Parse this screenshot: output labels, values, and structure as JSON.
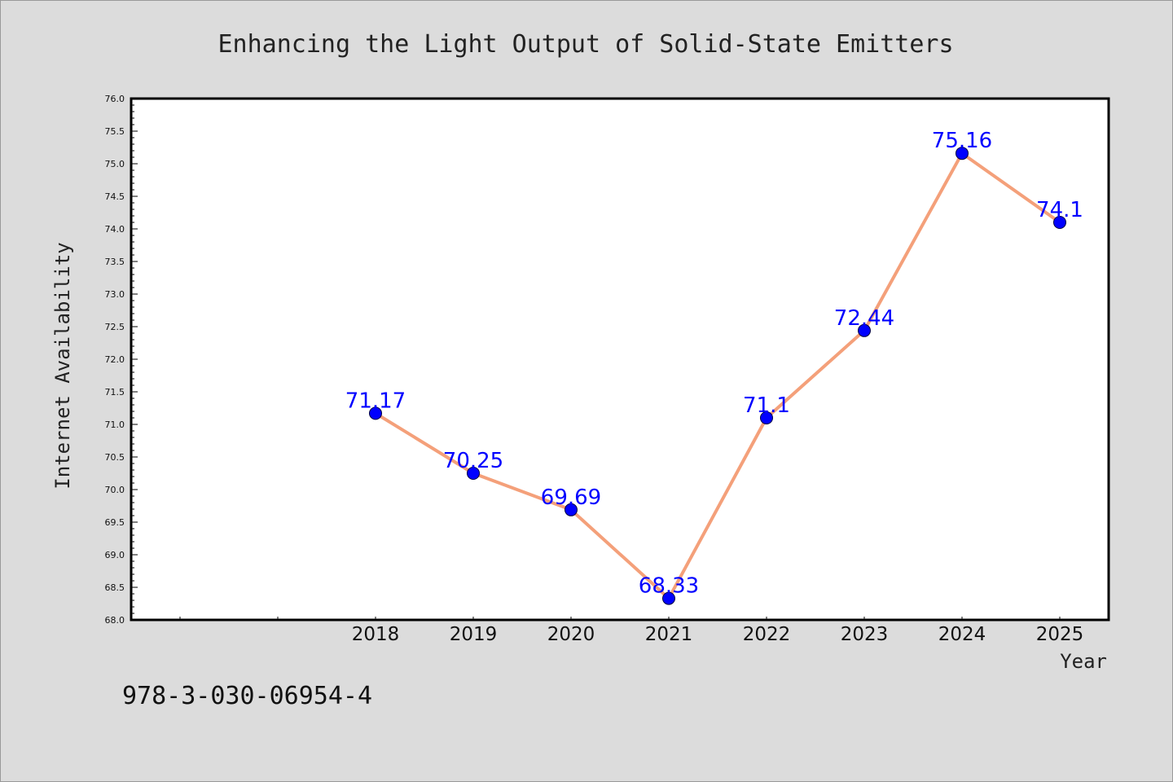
{
  "chart_data": {
    "type": "line",
    "title": "Enhancing the Light Output of Solid-State Emitters",
    "xlabel": "Year",
    "ylabel": "Internet Availability",
    "x": [
      "2018",
      "2019",
      "2020",
      "2021",
      "2022",
      "2023",
      "2024",
      "2025"
    ],
    "x_slots_before_data": 2,
    "series": [
      {
        "values": [
          71.17,
          70.25,
          69.69,
          68.33,
          71.1,
          72.44,
          75.16,
          74.1
        ],
        "point_labels": [
          "71.17",
          "70.25",
          "69.69",
          "68.33",
          "71.1",
          "72.44",
          "75.16",
          "74.1"
        ]
      }
    ],
    "ylim": [
      68.0,
      76.0
    ],
    "yticks": [
      "68.0",
      "68.5",
      "69.0",
      "69.5",
      "70.0",
      "70.5",
      "71.0",
      "71.5",
      "72.0",
      "72.5",
      "73.0",
      "73.5",
      "74.0",
      "74.5",
      "75.0",
      "75.5",
      "76.0"
    ],
    "grid": false,
    "legend": "none",
    "colors": {
      "line": "#f4a07a",
      "marker": "#0000ff",
      "label": "#0000ff",
      "plot_background": "#ffffff",
      "figure_background": "#dcdcdc"
    }
  },
  "footer_text": "978-3-030-06954-4"
}
